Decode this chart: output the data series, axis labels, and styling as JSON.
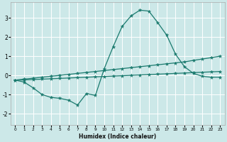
{
  "xlabel": "Humidex (Indice chaleur)",
  "background_color": "#cce8e8",
  "line_color": "#1a7a6e",
  "grid_color": "#ffffff",
  "xlim": [
    -0.5,
    23.5
  ],
  "ylim": [
    -2.6,
    3.8
  ],
  "yticks": [
    -2,
    -1,
    0,
    1,
    2,
    3
  ],
  "xticks": [
    0,
    1,
    2,
    3,
    4,
    5,
    6,
    7,
    8,
    9,
    10,
    11,
    12,
    13,
    14,
    15,
    16,
    17,
    18,
    19,
    20,
    21,
    22,
    23
  ],
  "line1_x": [
    0,
    1,
    2,
    3,
    4,
    5,
    6,
    7,
    8,
    9,
    10,
    11,
    12,
    13,
    14,
    15,
    16,
    17,
    18,
    19,
    20,
    21,
    22,
    23
  ],
  "line1_y": [
    -0.25,
    -0.35,
    -0.65,
    -1.0,
    -1.15,
    -1.2,
    -1.3,
    -1.55,
    -0.95,
    -1.05,
    0.35,
    1.5,
    2.55,
    3.1,
    3.4,
    3.35,
    2.75,
    2.1,
    1.1,
    0.45,
    0.1,
    -0.05,
    -0.1,
    -0.1
  ],
  "line2_x": [
    0,
    1,
    2,
    3,
    4,
    5,
    6,
    7,
    8,
    9,
    10,
    11,
    12,
    13,
    14,
    15,
    16,
    17,
    18,
    19,
    20,
    21,
    22,
    23
  ],
  "line2_y": [
    -0.25,
    -0.24,
    -0.22,
    -0.2,
    -0.18,
    -0.16,
    -0.14,
    -0.12,
    -0.1,
    -0.08,
    -0.06,
    -0.04,
    -0.02,
    0.0,
    0.02,
    0.04,
    0.06,
    0.08,
    0.1,
    0.12,
    0.14,
    0.16,
    0.18,
    0.2
  ],
  "line3_x": [
    0,
    1,
    2,
    3,
    4,
    5,
    6,
    7,
    8,
    9,
    10,
    11,
    12,
    13,
    14,
    15,
    16,
    17,
    18,
    19,
    20,
    21,
    22,
    23
  ],
  "line3_y": [
    -0.25,
    -0.2,
    -0.15,
    -0.1,
    -0.05,
    0.0,
    0.05,
    0.1,
    0.15,
    0.2,
    0.25,
    0.3,
    0.35,
    0.4,
    0.45,
    0.5,
    0.55,
    0.6,
    0.65,
    0.7,
    0.78,
    0.85,
    0.92,
    1.0
  ]
}
